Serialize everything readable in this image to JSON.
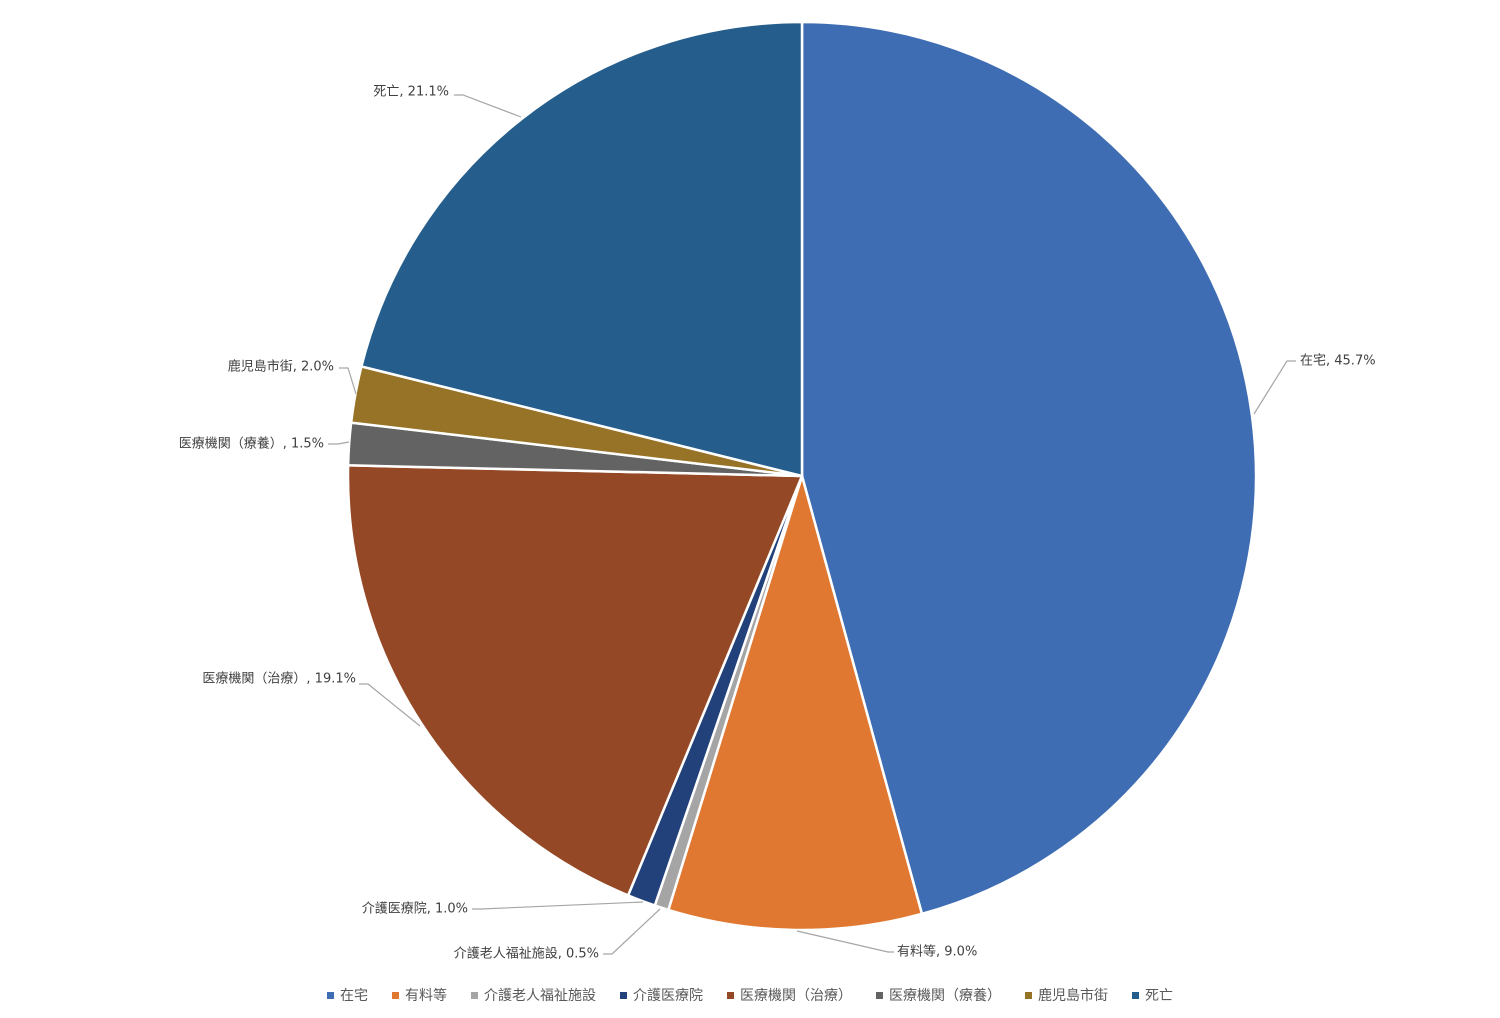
{
  "chart_data": {
    "type": "pie",
    "categories": [
      "在宅",
      "有料等",
      "介護老人福祉施設",
      "介護医療院",
      "医療機関（治療）",
      "医療機関（療養）",
      "鹿児島市街",
      "死亡"
    ],
    "values": [
      45.7,
      9.0,
      0.5,
      1.0,
      19.1,
      1.5,
      2.0,
      21.1
    ],
    "value_unit": "%",
    "data_labels": [
      "在宅, 45.7%",
      "有料等, 9.0%",
      "介護老人福祉施設, 0.5%",
      "介護医療院, 1.0%",
      "医療機関（治療）, 19.1%",
      "医療機関（療養）, 1.5%",
      "鹿児島市街, 2.0%",
      "死亡, 21.1%"
    ],
    "colors": [
      "#3f6db3",
      "#e07832",
      "#a5a5a5",
      "#22417a",
      "#954825",
      "#636363",
      "#967327",
      "#255e8c"
    ],
    "start_angle": "12 o'clock, clockwise",
    "legend_placement": "bottom",
    "title": ""
  }
}
